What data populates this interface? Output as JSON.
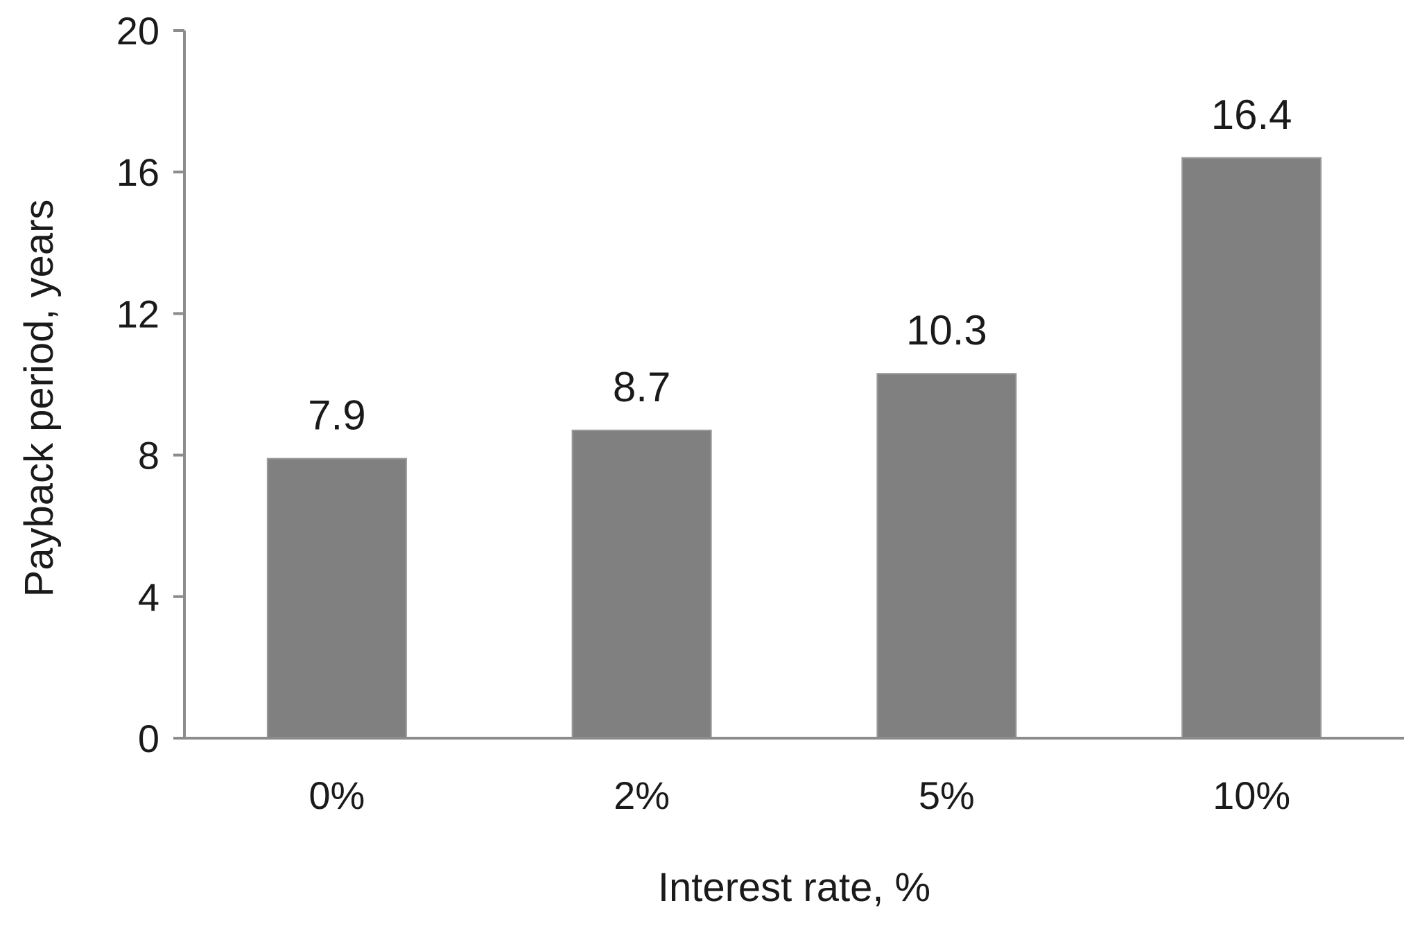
{
  "chart_data": {
    "type": "bar",
    "title": "",
    "categories": [
      "0%",
      "2%",
      "5%",
      "10%"
    ],
    "series": [
      {
        "values": [
          7.9,
          8.7,
          10.3,
          16.4
        ]
      }
    ],
    "data_labels": [
      "7.9",
      "8.7",
      "10.3",
      "16.4"
    ],
    "xlabel": "Interest rate, %",
    "ylabel": "Payback period, years",
    "ylim": [
      0,
      20
    ],
    "yticks": [
      0,
      4,
      8,
      12,
      16,
      20
    ],
    "ytick_labels": [
      "0",
      "4",
      "8",
      "12",
      "16",
      "20"
    ],
    "grid": false,
    "legend": "none",
    "colors": {
      "bar": "#808080",
      "axis": "#8c8c8c",
      "text": "#1a1a1a"
    }
  }
}
